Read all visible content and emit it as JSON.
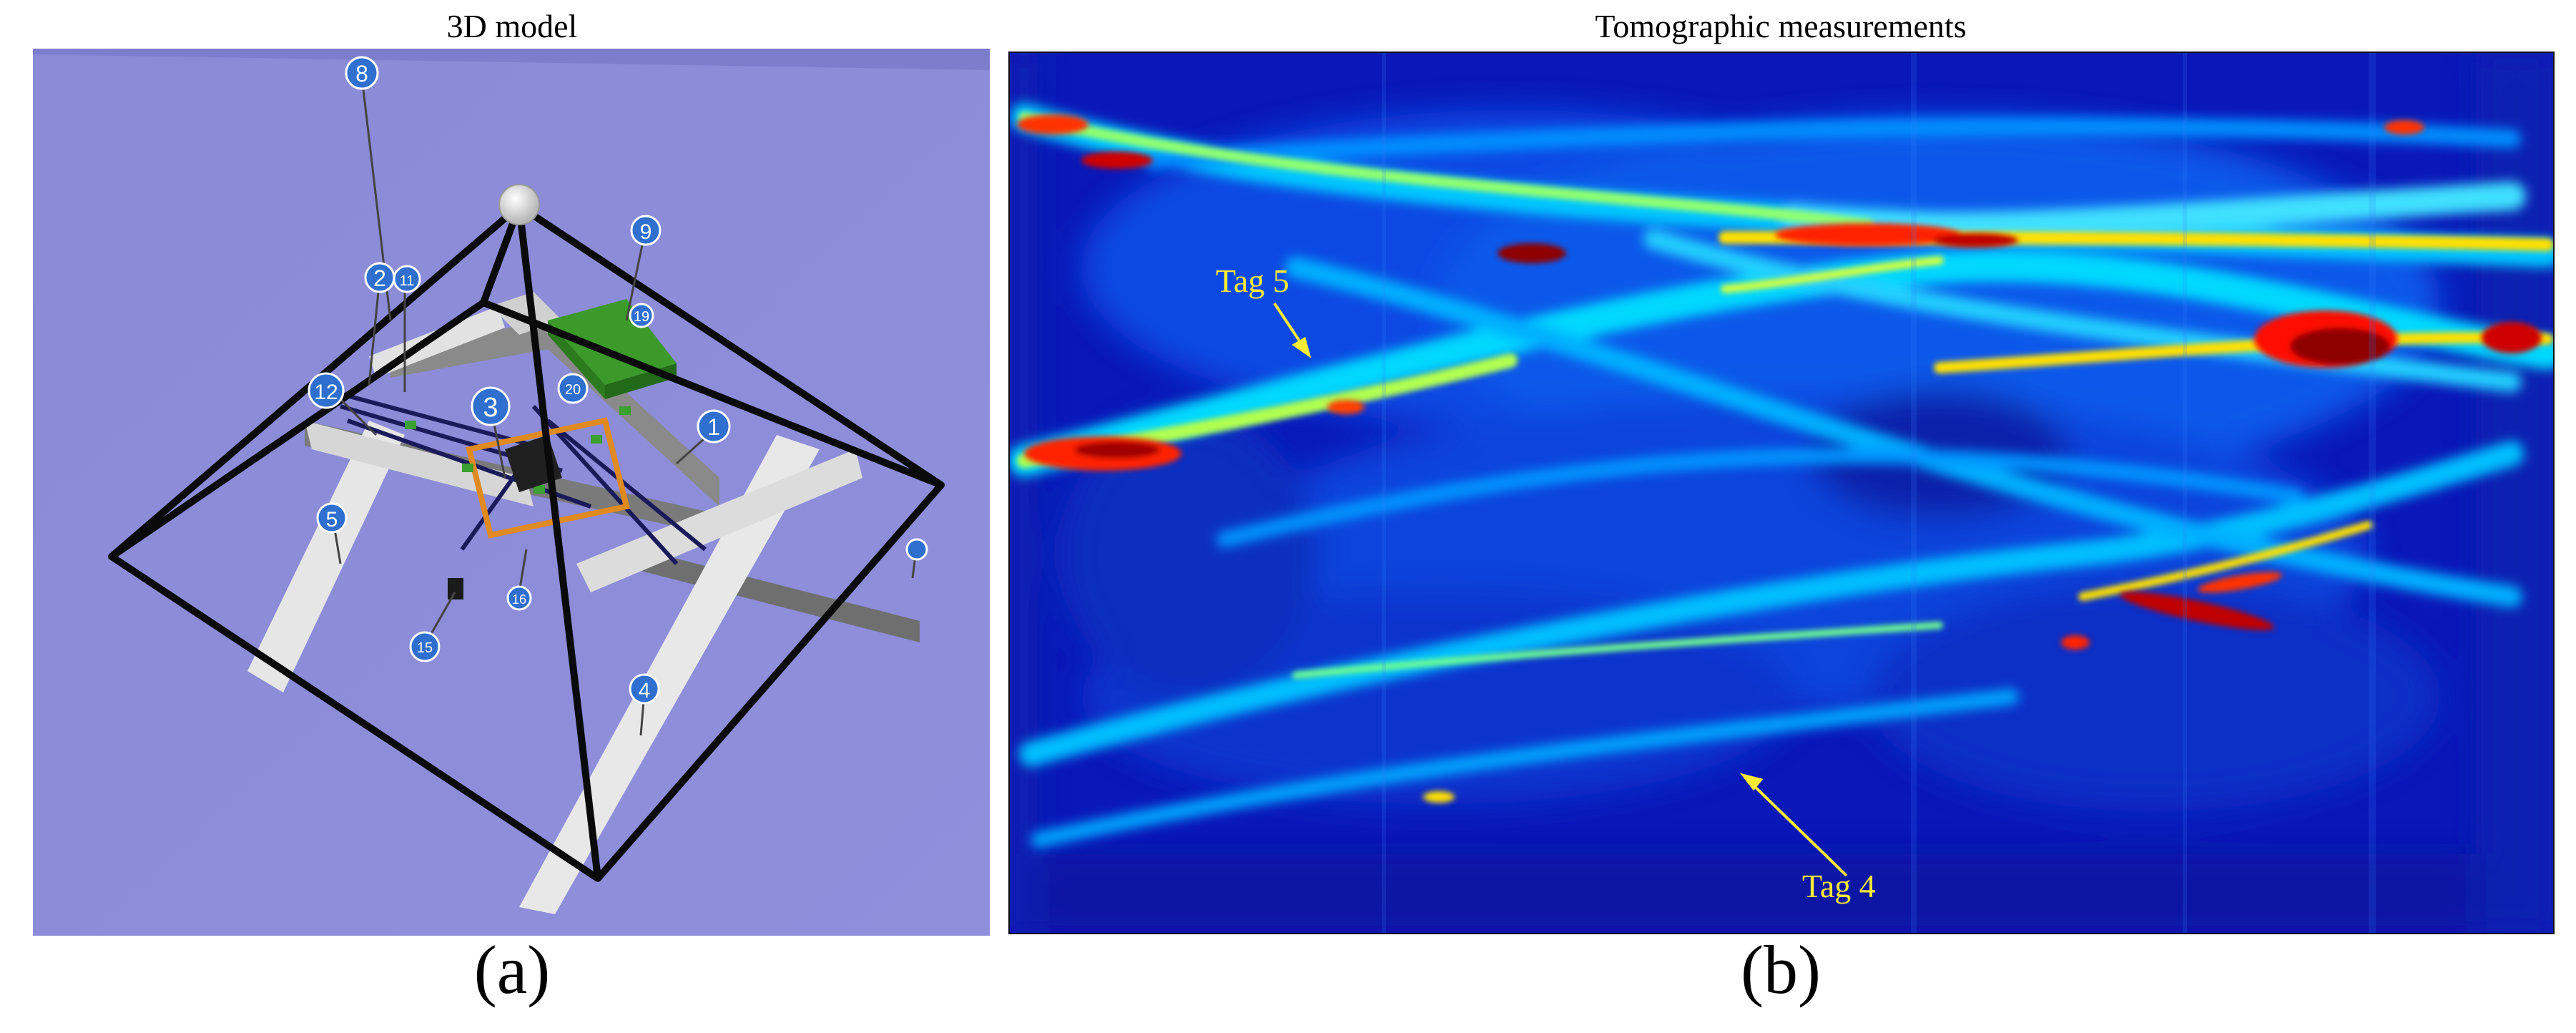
{
  "left_panel": {
    "title": "3D model",
    "letter": "(a)",
    "markers": [
      "8",
      "2",
      "11",
      "9",
      "19",
      "12",
      "3",
      "20",
      "1",
      "5",
      "15",
      "16",
      "4"
    ]
  },
  "right_panel": {
    "title": "Tomographic measurements",
    "letter": "(b)",
    "colormap": [
      "#00008f",
      "#0020ff",
      "#00d0ff",
      "#80ff80",
      "#ffe800",
      "#ff2000",
      "#8f0000"
    ],
    "tags": [
      {
        "label": "Tag 5"
      },
      {
        "label": "Tag 4"
      }
    ],
    "annotation_color": "#ffee33"
  }
}
